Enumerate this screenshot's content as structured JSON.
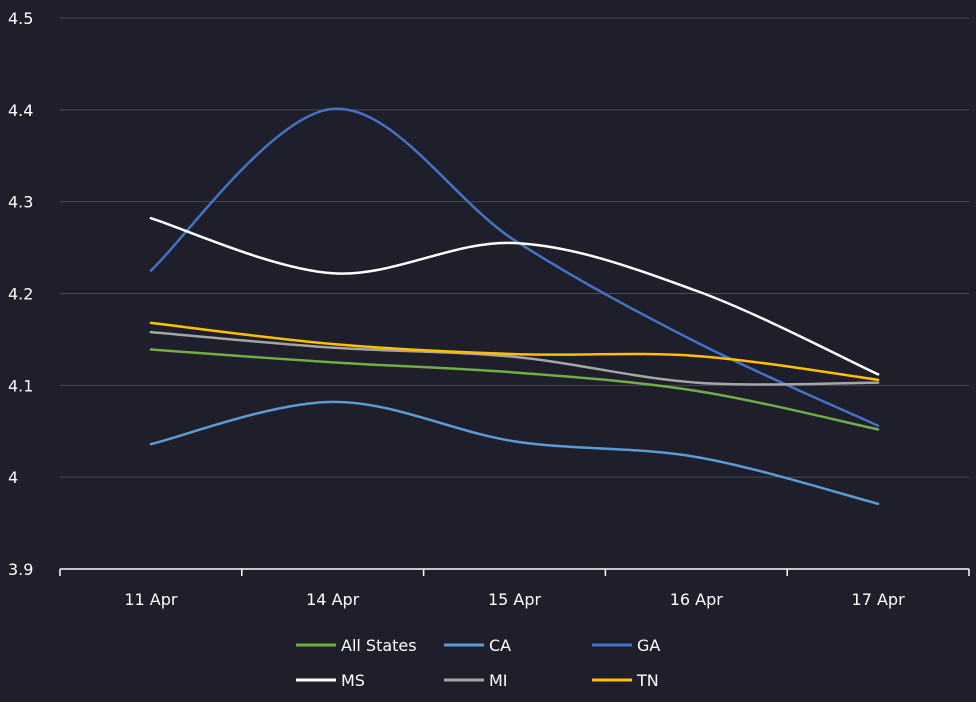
{
  "chart_data": {
    "type": "line",
    "title": "",
    "xlabel": "",
    "ylabel": "",
    "categories": [
      "11 Apr",
      "14 Apr",
      "15 Apr",
      "16 Apr",
      "17 Apr"
    ],
    "ylim": [
      3.9,
      4.5
    ],
    "yticks": [
      3.9,
      4,
      4.1,
      4.2,
      4.3,
      4.4,
      4.5
    ],
    "ytick_labels": [
      "3.9",
      "4",
      "4.1",
      "4.2",
      "4.3",
      "4.4",
      "4.5"
    ],
    "grid": true,
    "smooth": true,
    "legend_position": "bottom",
    "series": [
      {
        "name": "All States",
        "color": "#70ad47",
        "values": [
          4.139,
          4.125,
          4.114,
          4.094,
          4.052
        ]
      },
      {
        "name": "CA",
        "color": "#5b9bd5",
        "values": [
          4.036,
          4.082,
          4.039,
          4.022,
          3.971
        ]
      },
      {
        "name": "GA",
        "color": "#4472c4",
        "values": [
          4.225,
          4.401,
          4.258,
          4.147,
          4.056
        ]
      },
      {
        "name": "MS",
        "color": "#ffffff",
        "values": [
          4.282,
          4.222,
          4.255,
          4.203,
          4.112
        ]
      },
      {
        "name": "MI",
        "color": "#a5a5a5",
        "values": [
          4.158,
          4.141,
          4.131,
          4.103,
          4.103
        ]
      },
      {
        "name": "TN",
        "color": "#ffc000",
        "values": [
          4.168,
          4.145,
          4.134,
          4.132,
          4.106
        ]
      }
    ]
  }
}
